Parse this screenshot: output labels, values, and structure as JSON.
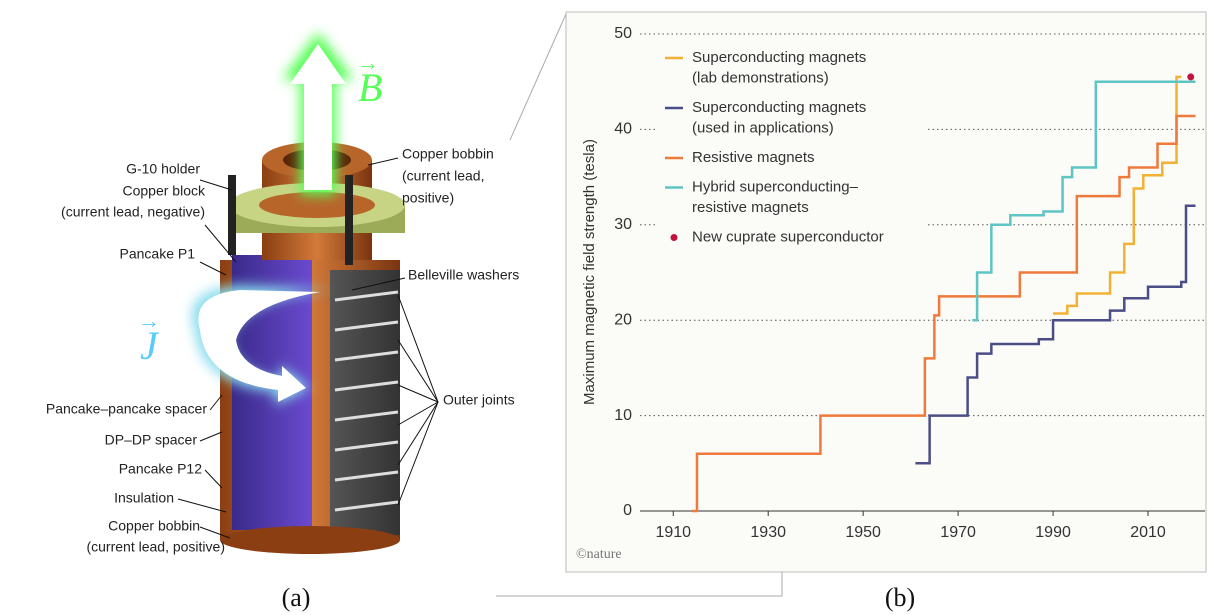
{
  "diagram": {
    "vector_b": "B",
    "vector_j": "J",
    "labels": {
      "g10_holder": "G-10 holder",
      "copper_block": [
        "Copper block",
        "(current lead, negative)"
      ],
      "pancake_p1": "Pancake P1",
      "pancake_spacer": "Pancake–pancake spacer",
      "dp_spacer": "DP–DP spacer",
      "pancake_p12": "Pancake P12",
      "insulation": "Insulation",
      "copper_bobbin_bottom": [
        "Copper bobbin",
        "(current lead, positive)"
      ],
      "copper_bobbin_top": [
        "Copper bobbin",
        "(current lead,",
        "positive)"
      ],
      "belleville": "Belleville washers",
      "outer_joints": "Outer joints"
    }
  },
  "captions": [
    "(a)",
    "(b)"
  ],
  "chart_data": {
    "type": "step",
    "y_label": "Maximum magnetic field strength (tesla)",
    "credit": "©nature",
    "xlim": [
      1903,
      2022
    ],
    "xticks": [
      1910,
      1930,
      1950,
      1970,
      1990,
      2010
    ],
    "ylim": [
      0,
      50
    ],
    "yticks": [
      0,
      10,
      20,
      30,
      40,
      50
    ],
    "grid": true,
    "series": [
      {
        "name": [
          "Superconducting magnets",
          "(lab demonstrations)"
        ],
        "color": "#f2b134",
        "x": [
          1990,
          1993,
          1995,
          2002,
          2005,
          2007,
          2009,
          2013,
          2016,
          2017
        ],
        "values": [
          20.7,
          21.5,
          22.8,
          25,
          28,
          33.8,
          35.2,
          36.5,
          45.5,
          45.5
        ]
      },
      {
        "name": [
          "Superconducting magnets",
          "(used in applications)"
        ],
        "color": "#4b4e86",
        "x": [
          1961,
          1964,
          1972,
          1974,
          1977,
          1987,
          1990,
          2002,
          2005,
          2010,
          2017,
          2018,
          2020
        ],
        "values": [
          5,
          10,
          14,
          16.5,
          17.5,
          18,
          20,
          21,
          22.3,
          23.5,
          24,
          32,
          32
        ]
      },
      {
        "name": [
          "Resistive magnets"
        ],
        "color": "#ee7a3b",
        "x": [
          1914,
          1915,
          1941,
          1963,
          1965,
          1966,
          1983,
          1995,
          2004,
          2006,
          2012,
          2016,
          2020
        ],
        "values": [
          0,
          6,
          10,
          16,
          20.5,
          22.5,
          25,
          33,
          35,
          36,
          38.5,
          41.4,
          41.4
        ]
      },
      {
        "name": [
          "Hybrid superconducting–",
          "resistive magnets"
        ],
        "color": "#5fc4c4",
        "x": [
          1973,
          1974,
          1977,
          1981,
          1988,
          1992,
          1994,
          1999,
          2020
        ],
        "values": [
          20,
          25,
          30,
          31,
          31.4,
          35,
          36,
          45,
          45
        ]
      },
      {
        "name": [
          "New cuprate superconductor"
        ],
        "color": "#c0143c",
        "marker": "dot",
        "x": [
          2019
        ],
        "values": [
          45.5
        ]
      }
    ]
  }
}
